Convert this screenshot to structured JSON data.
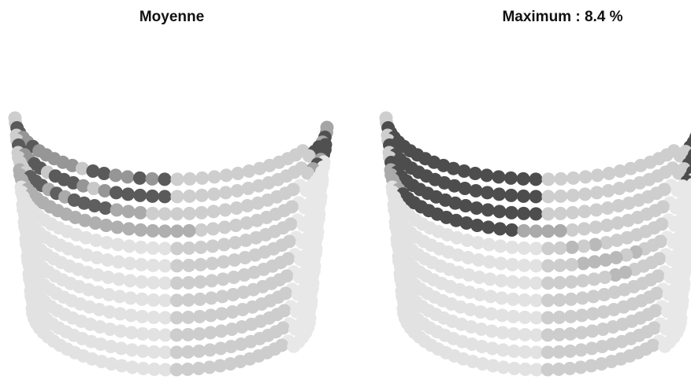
{
  "panels": [
    {
      "title": "Moyenne"
    },
    {
      "title": "Maximum : 8.4 %"
    }
  ]
}
